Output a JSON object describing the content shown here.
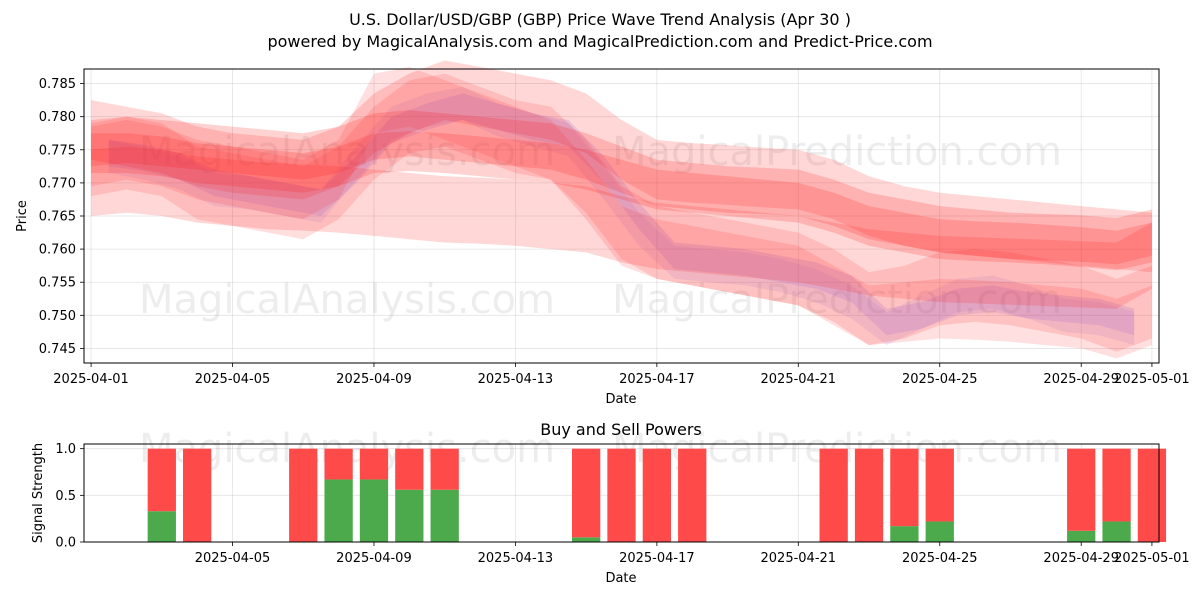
{
  "chart_data": [
    {
      "type": "area",
      "title": "U.S. Dollar/USD/GBP (GBP) Price Wave Trend Analysis (Apr 30 )",
      "subtitle": "powered by MagicalAnalysis.com and MagicalPrediction.com and Predict-Price.com",
      "xlabel": "Date",
      "ylabel": "Price",
      "xlim": [
        -0.2,
        30.2
      ],
      "ylim": [
        0.7428,
        0.7872
      ],
      "x_ticks": [
        {
          "x": 0,
          "label": "2025-04-01"
        },
        {
          "x": 4,
          "label": "2025-04-05"
        },
        {
          "x": 8,
          "label": "2025-04-09"
        },
        {
          "x": 12,
          "label": "2025-04-13"
        },
        {
          "x": 16,
          "label": "2025-04-17"
        },
        {
          "x": 20,
          "label": "2025-04-21"
        },
        {
          "x": 24,
          "label": "2025-04-25"
        },
        {
          "x": 28,
          "label": "2025-04-29"
        },
        {
          "x": 30,
          "label": "2025-05-01"
        }
      ],
      "y_ticks": [
        {
          "y": 0.745,
          "label": "0.745"
        },
        {
          "y": 0.75,
          "label": "0.750"
        },
        {
          "y": 0.755,
          "label": "0.755"
        },
        {
          "y": 0.76,
          "label": "0.760"
        },
        {
          "y": 0.765,
          "label": "0.765"
        },
        {
          "y": 0.77,
          "label": "0.770"
        },
        {
          "y": 0.775,
          "label": "0.775"
        },
        {
          "y": 0.78,
          "label": "0.780"
        },
        {
          "y": 0.785,
          "label": "0.785"
        }
      ],
      "grid": true,
      "watermarks": [
        "MagicalAnalysis.com",
        "MagicalPrediction.com"
      ],
      "series": [
        {
          "name": "actual-price-wave",
          "color": "#6f6fff",
          "opacity": 0.18,
          "width": 0.004,
          "x": [
            0.5,
            1.5,
            2.5,
            3.5,
            4.5,
            5.5,
            6.5,
            7.5,
            8.5,
            9.5,
            10.5,
            11.5,
            12.5,
            13.5,
            14.5,
            15.5,
            16.5,
            17.5,
            18.5,
            19.5,
            20.5,
            21.5,
            22.5,
            23.5,
            24.5,
            25.5,
            26.5,
            27.5,
            28.5,
            29.5
          ],
          "values": [
            0.7745,
            0.7738,
            0.7725,
            0.77,
            0.769,
            0.768,
            0.767,
            0.772,
            0.778,
            0.78,
            0.7815,
            0.78,
            0.7785,
            0.7775,
            0.772,
            0.765,
            0.759,
            0.7585,
            0.758,
            0.757,
            0.756,
            0.754,
            0.749,
            0.75,
            0.752,
            0.7525,
            0.7515,
            0.751,
            0.7505,
            0.749
          ]
        },
        {
          "name": "actual-price-wave-2",
          "color": "#6f6fff",
          "opacity": 0.12,
          "width": 0.005,
          "x": [
            0.5,
            1.5,
            2.5,
            3.5,
            4.5,
            5.5,
            6.5,
            7.5,
            8.5,
            9.5,
            10.5,
            11.5,
            12.5,
            13.5,
            14.5,
            15.5,
            16.5,
            17.5,
            18.5,
            19.5,
            20.5,
            21.5,
            22.5,
            23.5,
            24.5,
            25.5,
            26.5,
            27.5,
            28.5,
            29.5
          ],
          "values": [
            0.774,
            0.773,
            0.7715,
            0.769,
            0.7685,
            0.7675,
            0.7665,
            0.773,
            0.779,
            0.781,
            0.782,
            0.7795,
            0.778,
            0.7765,
            0.77,
            0.763,
            0.758,
            0.7575,
            0.757,
            0.756,
            0.7545,
            0.752,
            0.748,
            0.7505,
            0.753,
            0.7535,
            0.752,
            0.75,
            0.7495,
            0.748
          ]
        },
        {
          "name": "wave-band-1",
          "color": "#ff1f1f",
          "opacity": 0.18,
          "width": 0.009,
          "x": [
            0,
            1,
            2,
            3,
            4,
            5,
            6,
            7,
            8,
            9,
            10,
            11,
            12,
            13,
            14,
            15,
            16,
            17,
            18,
            19,
            20,
            21,
            22,
            23,
            24,
            25,
            26,
            27,
            28,
            29,
            30
          ],
          "values": [
            0.778,
            0.777,
            0.776,
            0.774,
            0.773,
            0.7725,
            0.772,
            0.774,
            0.779,
            0.782,
            0.784,
            0.783,
            0.782,
            0.781,
            0.779,
            0.775,
            0.772,
            0.7715,
            0.7712,
            0.7708,
            0.7705,
            0.769,
            0.7665,
            0.765,
            0.764,
            0.7635,
            0.763,
            0.7625,
            0.762,
            0.7615,
            0.761
          ]
        },
        {
          "name": "wave-band-2",
          "color": "#ff1f1f",
          "opacity": 0.18,
          "width": 0.01,
          "x": [
            0,
            1,
            2,
            3,
            4,
            5,
            6,
            7,
            8,
            9,
            10,
            11,
            12,
            13,
            14,
            15,
            16,
            17,
            18,
            19,
            20,
            21,
            22,
            23,
            24,
            25,
            26,
            27,
            28,
            29,
            30
          ],
          "values": [
            0.77,
            0.7705,
            0.77,
            0.769,
            0.7685,
            0.768,
            0.7678,
            0.7675,
            0.767,
            0.7665,
            0.766,
            0.7658,
            0.7655,
            0.765,
            0.7645,
            0.763,
            0.762,
            0.7615,
            0.761,
            0.7605,
            0.76,
            0.759,
            0.758,
            0.7575,
            0.757,
            0.7568,
            0.7566,
            0.7564,
            0.7562,
            0.756,
            0.759
          ]
        },
        {
          "name": "wave-band-3",
          "color": "#ff1f1f",
          "opacity": 0.2,
          "width": 0.007,
          "x": [
            0,
            1,
            2,
            3,
            4,
            5,
            6,
            7,
            8,
            9,
            10,
            11,
            12,
            13,
            14,
            15,
            16,
            17,
            18,
            19,
            20,
            21,
            22,
            23,
            24,
            25,
            26,
            27,
            28,
            29,
            30
          ],
          "values": [
            0.776,
            0.7765,
            0.776,
            0.7755,
            0.775,
            0.7745,
            0.774,
            0.775,
            0.777,
            0.7775,
            0.777,
            0.7765,
            0.776,
            0.7755,
            0.774,
            0.772,
            0.77,
            0.7695,
            0.769,
            0.7688,
            0.7685,
            0.767,
            0.765,
            0.764,
            0.763,
            0.7625,
            0.762,
            0.7618,
            0.7616,
            0.7612,
            0.7625
          ]
        },
        {
          "name": "wave-band-4",
          "color": "#ff1f1f",
          "opacity": 0.15,
          "width": 0.011,
          "x": [
            0,
            1,
            2,
            3,
            4,
            5,
            6,
            7,
            8,
            9,
            10,
            11,
            12,
            13,
            14,
            15,
            16,
            17,
            18,
            19,
            20,
            21,
            22,
            23,
            24,
            25,
            26,
            27,
            28,
            29,
            30
          ],
          "values": [
            0.7735,
            0.7745,
            0.7735,
            0.77,
            0.769,
            0.768,
            0.767,
            0.77,
            0.776,
            0.78,
            0.781,
            0.779,
            0.777,
            0.776,
            0.771,
            0.764,
            0.761,
            0.76,
            0.759,
            0.758,
            0.757,
            0.7545,
            0.751,
            0.752,
            0.754,
            0.7545,
            0.754,
            0.753,
            0.752,
            0.75,
            0.752
          ]
        },
        {
          "name": "wave-band-5",
          "color": "#ff1f1f",
          "opacity": 0.14,
          "width": 0.009,
          "x": [
            0,
            1,
            2,
            3,
            4,
            5,
            6,
            7,
            8,
            9,
            10,
            11,
            12,
            13,
            14,
            15,
            16,
            17,
            18,
            19,
            20,
            21,
            22,
            23,
            24,
            25,
            26,
            27,
            28,
            29,
            30
          ],
          "values": [
            0.774,
            0.775,
            0.774,
            0.772,
            0.771,
            0.77,
            0.769,
            0.772,
            0.782,
            0.783,
            0.781,
            0.779,
            0.777,
            0.775,
            0.769,
            0.762,
            0.76,
            0.759,
            0.758,
            0.757,
            0.756,
            0.753,
            0.75,
            0.7505,
            0.751,
            0.7508,
            0.7505,
            0.75,
            0.7495,
            0.748,
            0.75
          ]
        },
        {
          "name": "wave-band-6",
          "color": "#ff1f1f",
          "opacity": 0.2,
          "width": 0.006,
          "x": [
            0,
            1,
            2,
            3,
            4,
            5,
            6,
            7,
            8,
            9,
            10,
            11,
            12,
            13,
            14,
            15,
            16,
            17,
            18,
            19,
            20,
            21,
            22,
            23,
            24,
            25,
            26,
            27,
            28,
            29,
            30
          ],
          "values": [
            0.7745,
            0.7745,
            0.774,
            0.773,
            0.7725,
            0.772,
            0.7715,
            0.7725,
            0.7745,
            0.7748,
            0.7745,
            0.774,
            0.7735,
            0.773,
            0.772,
            0.7705,
            0.769,
            0.7685,
            0.768,
            0.7675,
            0.767,
            0.7655,
            0.7635,
            0.7625,
            0.7615,
            0.7612,
            0.761,
            0.7607,
            0.7603,
            0.7598,
            0.761
          ]
        }
      ]
    },
    {
      "type": "bar",
      "title": "Buy and Sell Powers",
      "xlabel": "Date",
      "ylabel": "Signal Strength",
      "xlim": [
        -0.2,
        30.2
      ],
      "ylim": [
        0,
        1.05
      ],
      "x_ticks": [
        {
          "x": 4,
          "label": "2025-04-05"
        },
        {
          "x": 8,
          "label": "2025-04-09"
        },
        {
          "x": 12,
          "label": "2025-04-13"
        },
        {
          "x": 16,
          "label": "2025-04-17"
        },
        {
          "x": 20,
          "label": "2025-04-21"
        },
        {
          "x": 24,
          "label": "2025-04-25"
        },
        {
          "x": 28,
          "label": "2025-04-29"
        },
        {
          "x": 30,
          "label": "2025-05-01"
        }
      ],
      "y_ticks": [
        {
          "y": 0.0,
          "label": "0.0"
        },
        {
          "y": 0.5,
          "label": "0.5"
        },
        {
          "y": 1.0,
          "label": "1.0"
        }
      ],
      "grid": true,
      "buy_color": "#4caa4c",
      "sell_color": "#ff4a4a",
      "x": [
        2,
        3,
        6,
        7,
        8,
        9,
        10,
        14,
        15,
        16,
        17,
        21,
        22,
        23,
        24,
        28,
        29,
        30
      ],
      "series": [
        {
          "name": "Buy",
          "values": [
            0.33,
            0.0,
            0.0,
            0.67,
            0.67,
            0.56,
            0.56,
            0.05,
            0.0,
            0.0,
            0.0,
            0.0,
            0.0,
            0.17,
            0.22,
            0.12,
            0.22,
            0.0
          ]
        },
        {
          "name": "Sell",
          "values": [
            0.67,
            1.0,
            1.0,
            0.33,
            0.33,
            0.44,
            0.44,
            0.95,
            1.0,
            1.0,
            1.0,
            1.0,
            1.0,
            0.83,
            0.78,
            0.88,
            0.78,
            1.0
          ]
        }
      ]
    }
  ]
}
